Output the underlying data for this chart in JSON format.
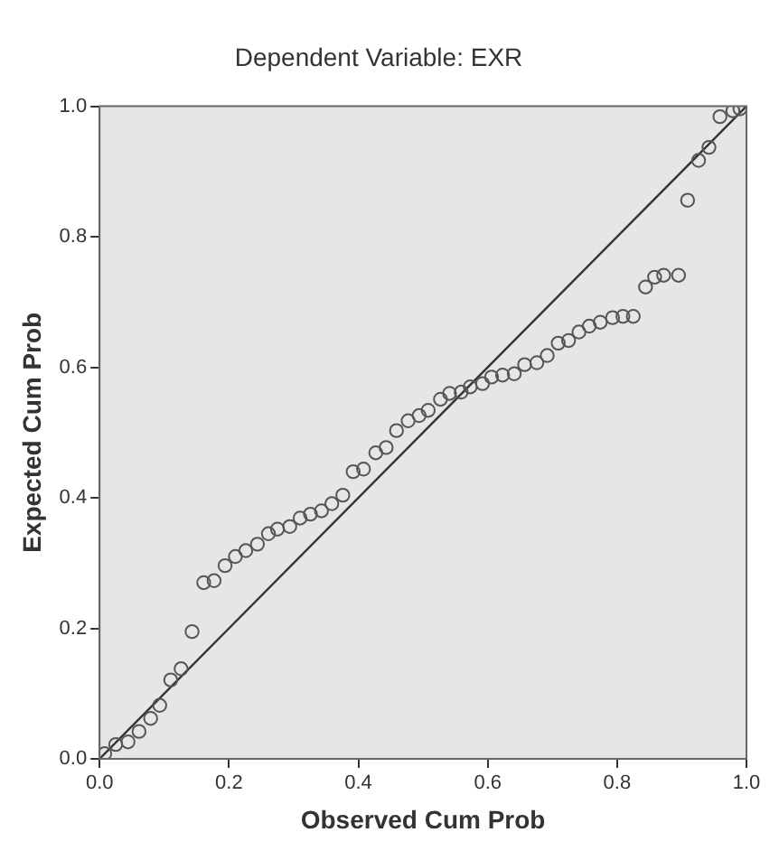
{
  "chart_data": {
    "type": "scatter",
    "title": "Dependent Variable: EXR",
    "xlabel": "Observed Cum Prob",
    "ylabel": "Expected Cum Prob",
    "grid": false,
    "legend": false,
    "xlim": [
      0,
      1
    ],
    "ylim": [
      0,
      1
    ],
    "xticks": [
      {
        "value": 0,
        "label": "0.0"
      },
      {
        "value": 0.2,
        "label": "0.2"
      },
      {
        "value": 0.4,
        "label": "0.4"
      },
      {
        "value": 0.6,
        "label": "0.6"
      },
      {
        "value": 0.8,
        "label": "0.8"
      },
      {
        "value": 1,
        "label": "1.0"
      }
    ],
    "yticks": [
      {
        "value": 0,
        "label": "0.0"
      },
      {
        "value": 0.2,
        "label": "0.2"
      },
      {
        "value": 0.4,
        "label": "0.4"
      },
      {
        "value": 0.6,
        "label": "0.6"
      },
      {
        "value": 0.8,
        "label": "0.8"
      },
      {
        "value": 1,
        "label": "1.0"
      }
    ],
    "series": [
      {
        "marker": "circle",
        "color": "#555555",
        "x": [
          0.008,
          0.025,
          0.044,
          0.061,
          0.079,
          0.093,
          0.11,
          0.126,
          0.143,
          0.161,
          0.177,
          0.194,
          0.21,
          0.226,
          0.244,
          0.261,
          0.275,
          0.294,
          0.31,
          0.326,
          0.343,
          0.359,
          0.376,
          0.392,
          0.408,
          0.427,
          0.443,
          0.459,
          0.477,
          0.494,
          0.508,
          0.527,
          0.541,
          0.559,
          0.573,
          0.592,
          0.606,
          0.623,
          0.641,
          0.657,
          0.676,
          0.692,
          0.709,
          0.725,
          0.741,
          0.757,
          0.774,
          0.793,
          0.809,
          0.825,
          0.844,
          0.858,
          0.872,
          0.895,
          0.909,
          0.926,
          0.942,
          0.959,
          0.979,
          0.99
        ],
        "values": [
          0.008,
          0.022,
          0.026,
          0.042,
          0.062,
          0.082,
          0.121,
          0.138,
          0.195,
          0.27,
          0.273,
          0.296,
          0.31,
          0.319,
          0.329,
          0.345,
          0.352,
          0.356,
          0.369,
          0.375,
          0.38,
          0.391,
          0.404,
          0.44,
          0.444,
          0.469,
          0.477,
          0.503,
          0.518,
          0.526,
          0.534,
          0.551,
          0.56,
          0.562,
          0.57,
          0.575,
          0.585,
          0.588,
          0.59,
          0.604,
          0.607,
          0.618,
          0.637,
          0.641,
          0.654,
          0.663,
          0.669,
          0.676,
          0.678,
          0.678,
          0.723,
          0.738,
          0.741,
          0.741,
          0.856,
          0.917,
          0.937,
          0.984,
          0.993,
          0.996
        ]
      },
      {
        "type": "line",
        "marker": "none",
        "color": "#333333",
        "x": [
          0,
          1
        ],
        "values": [
          0,
          1
        ]
      }
    ]
  }
}
